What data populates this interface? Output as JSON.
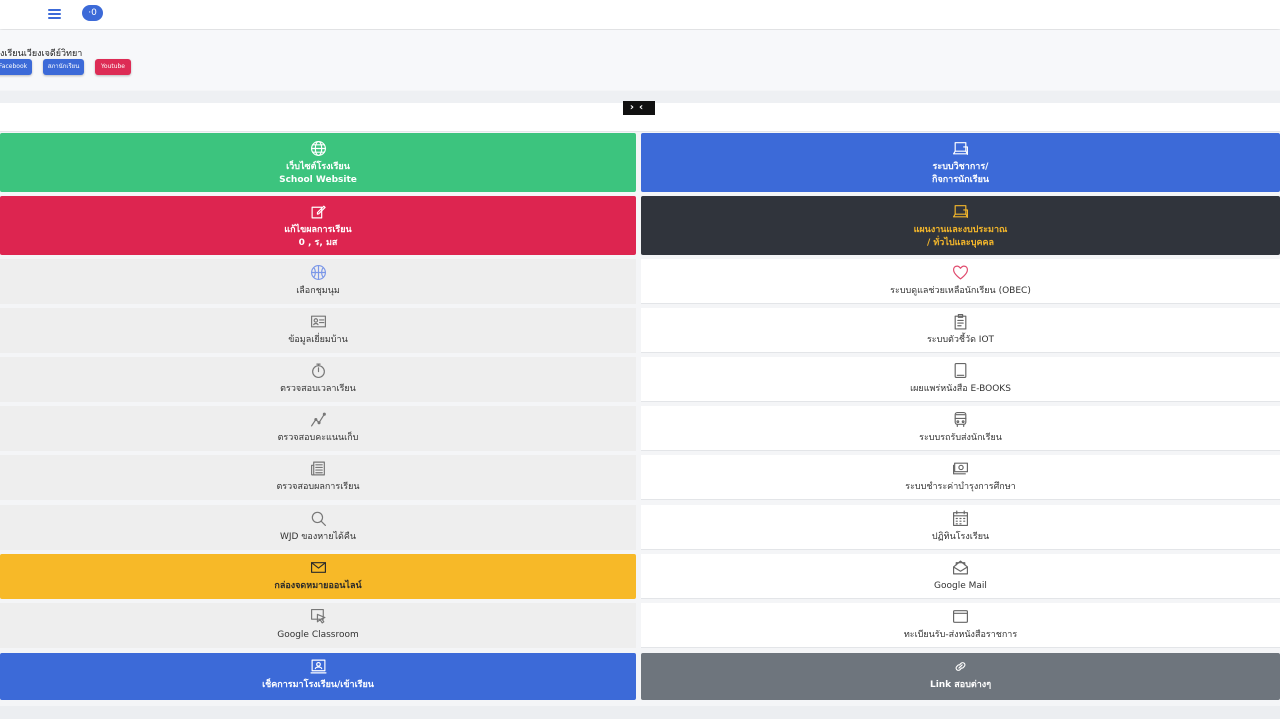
{
  "topbar": {
    "badge": "·0"
  },
  "header": {
    "school_name": "งเรียนเวียงเจดีย์วิทยา",
    "buttons": [
      {
        "label": "Facebook",
        "color": "#3c6ad8"
      },
      {
        "label": "สภานักเรียน",
        "color": "#3c6ad8"
      },
      {
        "label": "Youtube",
        "color": "#dd2c55"
      }
    ]
  },
  "colors": {
    "green": "#3cc47e",
    "blue": "#3c6ad8",
    "red": "#dd2550",
    "dark": "#30343c",
    "yellow": "#f7b928",
    "gray": "#6e757d",
    "light": "#eeeeee",
    "white": "#ffffff",
    "orange_text": "#f3b62b"
  },
  "tiles_left": [
    {
      "icon": "globe-icon",
      "line1": "เว็บไซต์โรงเรียน",
      "line2": "School Website",
      "style": "green"
    },
    {
      "icon": "edit-icon",
      "line1": "แก้ไขผลการเรียน",
      "line2": "0 , ร, มส",
      "style": "red"
    },
    {
      "icon": "basketball-icon",
      "line1": "เลือกชุมนุม",
      "line2": "",
      "style": "light"
    },
    {
      "icon": "id-card-icon",
      "line1": "ข้อมูลเยี่ยมบ้าน",
      "line2": "",
      "style": "light"
    },
    {
      "icon": "stopwatch-icon",
      "line1": "ตรวจสอบเวลาเรียน",
      "line2": "",
      "style": "light"
    },
    {
      "icon": "graph-up-icon",
      "line1": "ตรวจสอบคะแนนเก็บ",
      "line2": "",
      "style": "light"
    },
    {
      "icon": "newspaper-icon",
      "line1": "ตรวจสอบผลการเรียน",
      "line2": "",
      "style": "light"
    },
    {
      "icon": "search-icon",
      "line1": "WJD ของหายได้คืน",
      "line2": "",
      "style": "light"
    },
    {
      "icon": "envelope-icon",
      "line1": "กล่องจดหมายออนไลน์",
      "line2": "",
      "style": "yellow"
    },
    {
      "icon": "cursor-icon",
      "line1": "Google Classroom",
      "line2": "",
      "style": "light"
    },
    {
      "icon": "attendance-icon",
      "line1": "เช็คการมาโรงเรียน/เข้าเรียน",
      "line2": "",
      "style": "blue"
    }
  ],
  "tiles_right": [
    {
      "icon": "laptop-icon",
      "line1": "ระบบวิชาการ/",
      "line2": "กิจการนักเรียน",
      "style": "blue"
    },
    {
      "icon": "laptop-icon",
      "line1": "แผนงานและงบประมาณ",
      "line2": "/ ทั่วไปและบุคคล",
      "style": "dark"
    },
    {
      "icon": "heart-icon",
      "line1": "ระบบดูแลช่วยเหลือนักเรียน (OBEC)",
      "line2": "",
      "style": "white"
    },
    {
      "icon": "clipboard-icon",
      "line1": "ระบบตัวชี้วัด IOT",
      "line2": "",
      "style": "white"
    },
    {
      "icon": "book-icon",
      "line1": "เผยแพร่หนังสือ E-BOOKS",
      "line2": "",
      "style": "white"
    },
    {
      "icon": "bus-icon",
      "line1": "ระบบรถรับส่งนักเรียน",
      "line2": "",
      "style": "white"
    },
    {
      "icon": "cash-icon",
      "line1": "ระบบชำระค่าบำรุงการศึกษา",
      "line2": "",
      "style": "white"
    },
    {
      "icon": "calendar-icon",
      "line1": "ปฏิทินโรงเรียน",
      "line2": "",
      "style": "white"
    },
    {
      "icon": "mail-open-icon",
      "line1": "Google Mail",
      "line2": "",
      "style": "white"
    },
    {
      "icon": "window-icon",
      "line1": "ทะเบียนรับ-ส่งหนังสือราชการ",
      "line2": "",
      "style": "white"
    },
    {
      "icon": "link-icon",
      "line1": "Link สอบต่างๆ",
      "line2": "",
      "style": "gray"
    }
  ]
}
